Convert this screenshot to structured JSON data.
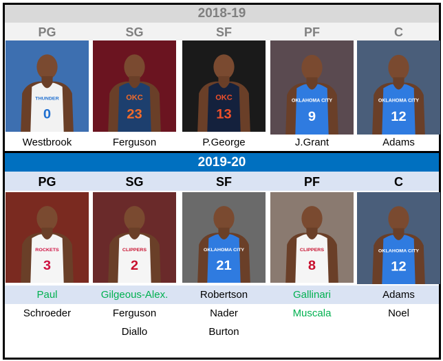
{
  "season1": {
    "title": "2018-19",
    "header_bg": "#d9d9d9",
    "title_color": "#808080",
    "pos_bg": "#f2f2f2",
    "positions": [
      "PG",
      "SG",
      "SF",
      "PF",
      "C"
    ],
    "players": [
      {
        "name": "Westbrook",
        "jersey": "#f2f2f2",
        "number": "0",
        "numcolor": "#1f6fd0",
        "bg": "#3d6fb0",
        "text": "THUNDER"
      },
      {
        "name": "Ferguson",
        "jersey": "#1d3f6e",
        "number": "23",
        "numcolor": "#f26b2a",
        "bg": "#6b1420",
        "text": "OKC"
      },
      {
        "name": "P.George",
        "jersey": "#14213d",
        "number": "13",
        "numcolor": "#f0502a",
        "bg": "#1a1a1a",
        "text": "OKC"
      },
      {
        "name": "J.Grant",
        "jersey": "#2f7be0",
        "number": "9",
        "numcolor": "#ffffff",
        "bg": "#5a4a50",
        "text": "OKLAHOMA CITY"
      },
      {
        "name": "Adams",
        "jersey": "#2f7be0",
        "number": "12",
        "numcolor": "#ffffff",
        "bg": "#4a5e7a",
        "text": "OKLAHOMA CITY"
      }
    ]
  },
  "season2": {
    "title": "2019-20",
    "header_bg": "#0070c0",
    "pos_bg": "#dae3f3",
    "positions": [
      "PG",
      "SG",
      "SF",
      "PF",
      "C"
    ],
    "players": [
      {
        "jersey": "#f5f5f5",
        "number": "3",
        "numcolor": "#ce1141",
        "bg": "#7a2a20",
        "text": "ROCKETS"
      },
      {
        "jersey": "#f5f5f5",
        "number": "2",
        "numcolor": "#c8102e",
        "bg": "#6a2a2a",
        "text": "CLIPPERS"
      },
      {
        "jersey": "#2f7be0",
        "number": "21",
        "numcolor": "#ffffff",
        "bg": "#6a6a6a",
        "text": "OKLAHOMA CITY"
      },
      {
        "jersey": "#f5f5f5",
        "number": "8",
        "numcolor": "#c8102e",
        "bg": "#8a7a70",
        "text": "CLIPPERS"
      },
      {
        "jersey": "#2f7be0",
        "number": "12",
        "numcolor": "#ffffff",
        "bg": "#4a5e7a",
        "text": "OKLAHOMA CITY"
      }
    ],
    "depth_rows": [
      [
        {
          "name": "Paul",
          "new": true
        },
        {
          "name": "Gilgeous-Alex.",
          "new": true
        },
        {
          "name": "Robertson",
          "new": false
        },
        {
          "name": "Gallinari",
          "new": true
        },
        {
          "name": "Adams",
          "new": false
        }
      ],
      [
        {
          "name": "Schroeder",
          "new": false
        },
        {
          "name": "Ferguson",
          "new": false
        },
        {
          "name": "Nader",
          "new": false
        },
        {
          "name": "Muscala",
          "new": true
        },
        {
          "name": "Noel",
          "new": false
        }
      ],
      [
        {
          "name": "",
          "new": false
        },
        {
          "name": "Diallo",
          "new": false
        },
        {
          "name": "Burton",
          "new": false
        },
        {
          "name": "",
          "new": false
        },
        {
          "name": "",
          "new": false
        }
      ]
    ],
    "new_player_color": "#00b050"
  }
}
